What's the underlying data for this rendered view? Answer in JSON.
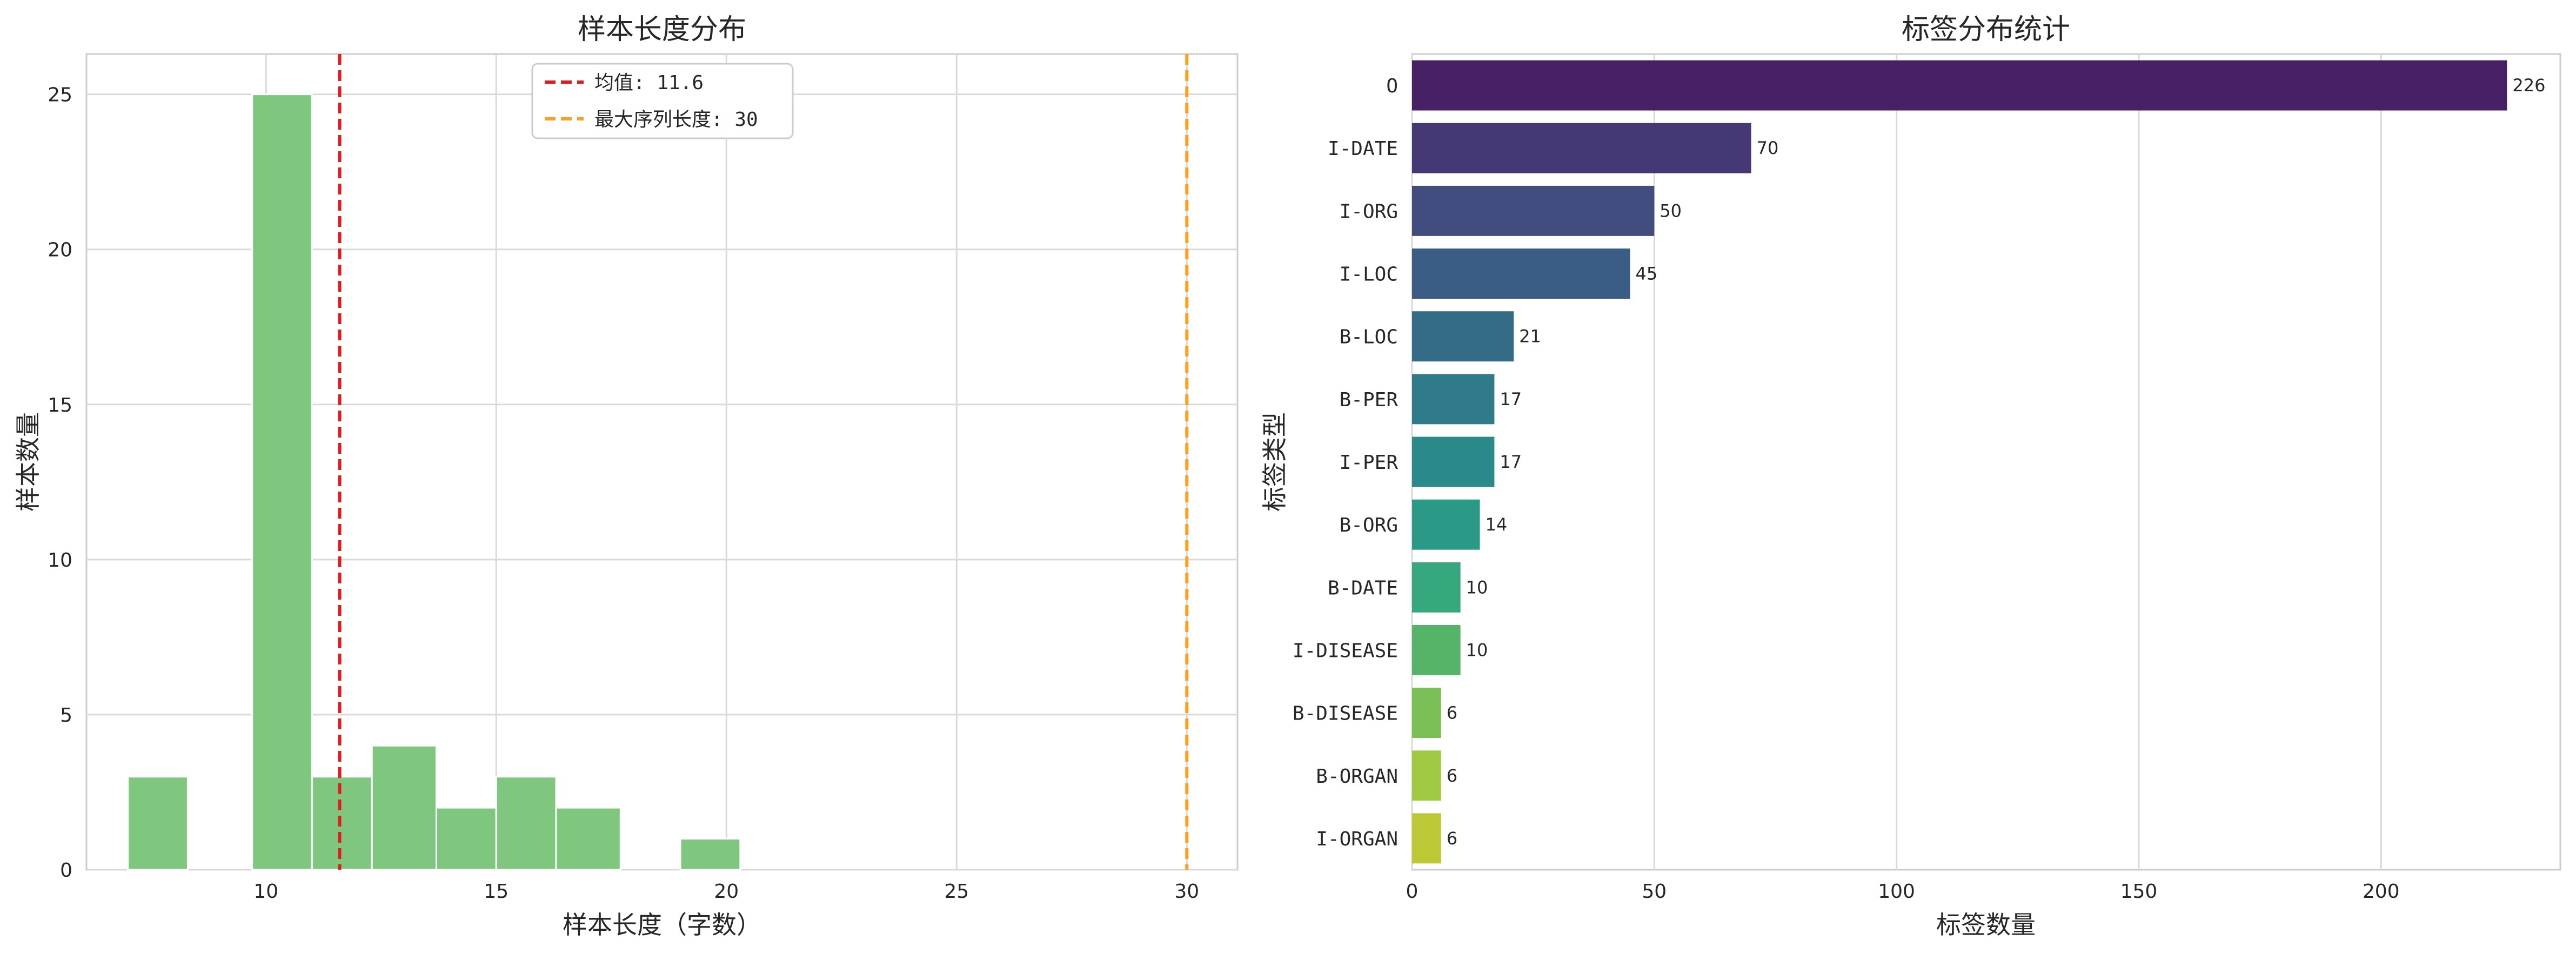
{
  "chart_data": [
    {
      "type": "histogram",
      "title": "样本长度分布",
      "xlabel": "样本长度（字数）",
      "ylabel": "样本数量",
      "xlim": [
        6.1,
        31.1
      ],
      "ylim": [
        0,
        26.3
      ],
      "xticks": [
        10,
        15,
        20,
        25,
        30
      ],
      "yticks": [
        0,
        5,
        10,
        15,
        20,
        25
      ],
      "bins": [
        {
          "start": 7.0,
          "end": 8.3,
          "count": 3
        },
        {
          "start": 9.7,
          "end": 11.0,
          "count": 25
        },
        {
          "start": 11.0,
          "end": 12.3,
          "count": 3
        },
        {
          "start": 12.3,
          "end": 13.7,
          "count": 4
        },
        {
          "start": 13.7,
          "end": 15.0,
          "count": 2
        },
        {
          "start": 15.0,
          "end": 16.3,
          "count": 3
        },
        {
          "start": 16.3,
          "end": 17.7,
          "count": 2
        },
        {
          "start": 19.0,
          "end": 20.3,
          "count": 1
        }
      ],
      "bar_color": "#7fc77f",
      "reference_lines": [
        {
          "x": 11.6,
          "label": "均值: 11.6",
          "color": "#e41a1c"
        },
        {
          "x": 30,
          "label": "最大序列长度: 30",
          "color": "#ff9f1c"
        }
      ],
      "legend_position": "top-center",
      "grid": true
    },
    {
      "type": "bar",
      "orientation": "horizontal",
      "title": "标签分布统计",
      "xlabel": "标签数量",
      "ylabel": "标签类型",
      "xlim": [
        0,
        237
      ],
      "xticks": [
        0,
        50,
        100,
        150,
        200
      ],
      "categories": [
        "O",
        "I-DATE",
        "I-ORG",
        "I-LOC",
        "B-LOC",
        "B-PER",
        "I-PER",
        "B-ORG",
        "B-DATE",
        "I-DISEASE",
        "B-DISEASE",
        "B-ORGAN",
        "I-ORGAN"
      ],
      "values": [
        226,
        70,
        50,
        45,
        21,
        17,
        17,
        14,
        10,
        10,
        6,
        6,
        6
      ],
      "colors": [
        "#482064",
        "#463874",
        "#424d7f",
        "#3b5c85",
        "#346b87",
        "#2f7b8a",
        "#2a8a89",
        "#2a9986",
        "#36a87d",
        "#56b468",
        "#7bbf57",
        "#a0ca44",
        "#bcc834"
      ],
      "grid": true
    }
  ]
}
